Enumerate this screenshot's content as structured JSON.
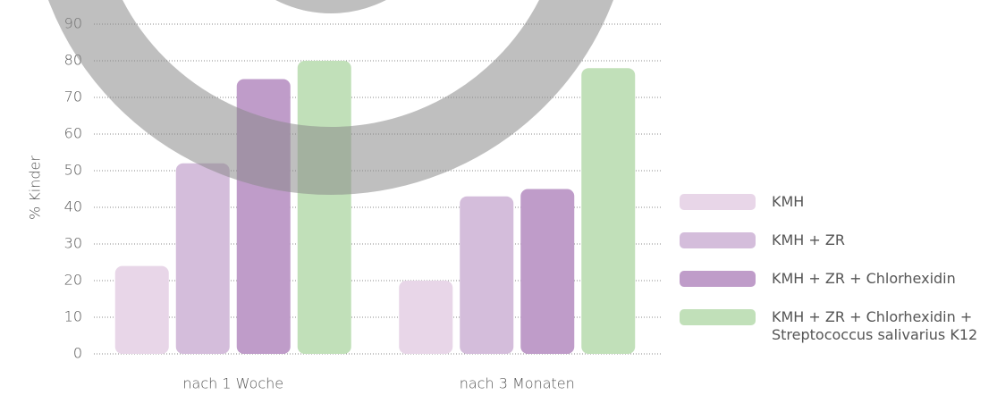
{
  "chart_data": {
    "type": "bar",
    "y_label": "% Kinder",
    "categories": [
      "nach 1 Woche",
      "nach 3 Monaten"
    ],
    "series": [
      {
        "name": "KMH",
        "color": "#e8d6e8",
        "values": [
          24,
          20
        ]
      },
      {
        "name": "KMH + ZR",
        "color": "#d4bddb",
        "values": [
          52,
          43
        ]
      },
      {
        "name": "KMH + ZR + Chlorhexidin",
        "color": "#bf9cc9",
        "values": [
          75,
          45
        ]
      },
      {
        "name": "KMH + ZR + Chlorhexidin + Streptococcus salivarius K12",
        "color": "#c1e0b9",
        "values": [
          80,
          78
        ]
      }
    ],
    "ylim": [
      0,
      90
    ],
    "yticks": [
      0,
      10,
      20,
      30,
      40,
      50,
      60,
      70,
      80,
      90
    ],
    "grid": true,
    "legend": "right"
  }
}
